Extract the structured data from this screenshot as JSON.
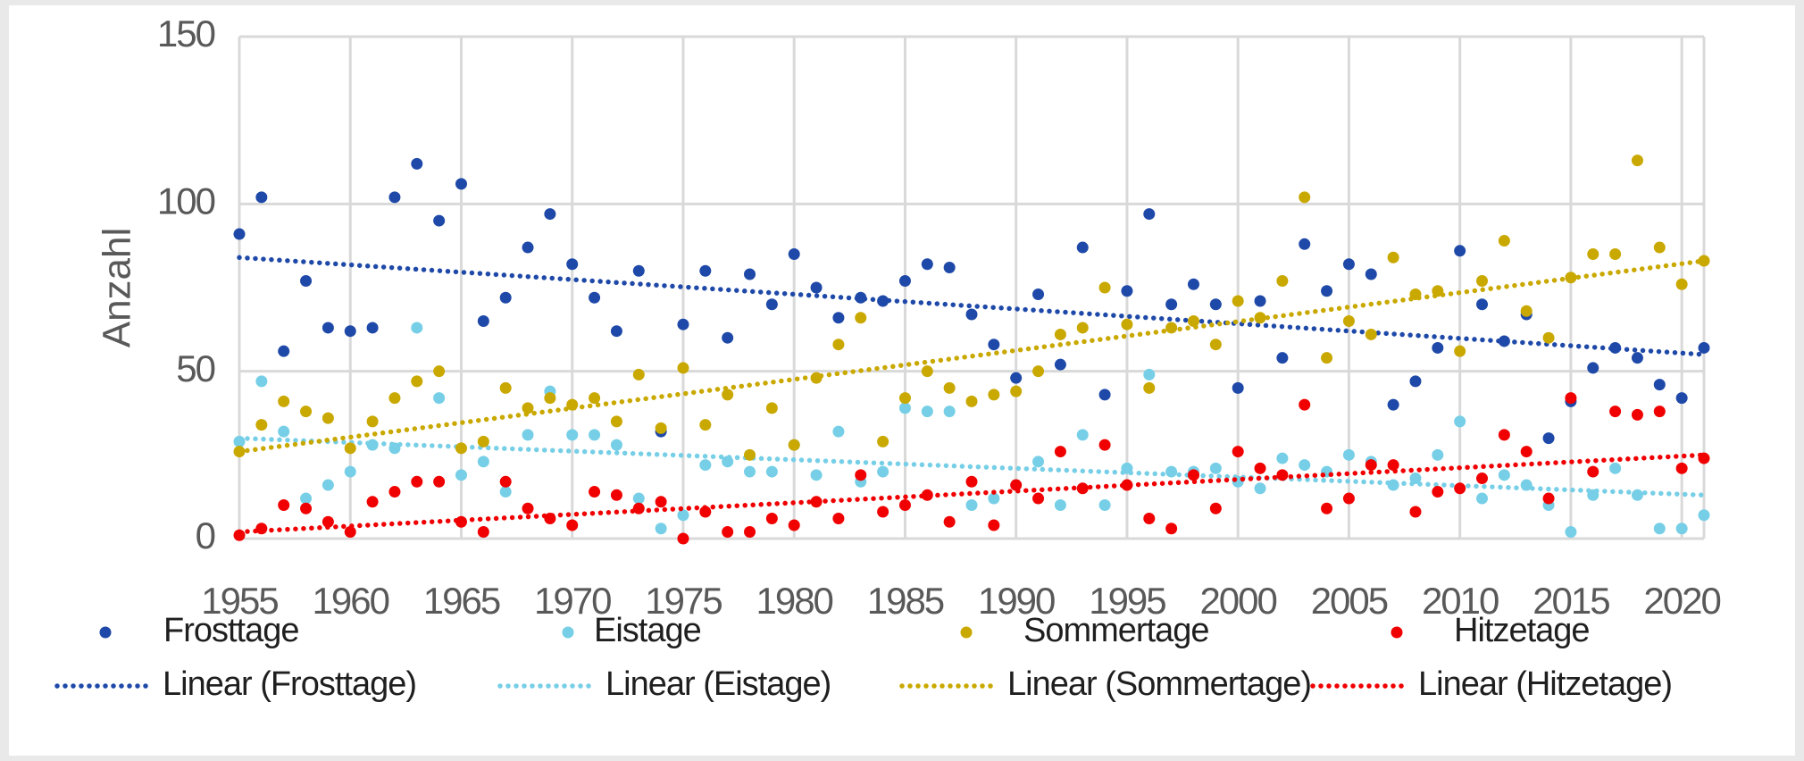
{
  "chart_data": {
    "type": "scatter",
    "y_label": "Anzahl",
    "x": [
      1955,
      1956,
      1957,
      1958,
      1959,
      1960,
      1961,
      1962,
      1963,
      1964,
      1965,
      1966,
      1967,
      1968,
      1969,
      1970,
      1971,
      1972,
      1973,
      1974,
      1975,
      1976,
      1977,
      1978,
      1979,
      1980,
      1981,
      1982,
      1983,
      1984,
      1985,
      1986,
      1987,
      1988,
      1989,
      1990,
      1991,
      1992,
      1993,
      1994,
      1995,
      1996,
      1997,
      1998,
      1999,
      2000,
      2001,
      2002,
      2003,
      2004,
      2005,
      2006,
      2007,
      2008,
      2009,
      2010,
      2011,
      2012,
      2013,
      2014,
      2015,
      2016,
      2017,
      2018,
      2019,
      2020,
      2021
    ],
    "xlim": [
      1955,
      2021
    ],
    "xticks": [
      1955,
      1960,
      1965,
      1970,
      1975,
      1980,
      1985,
      1990,
      1995,
      2000,
      2005,
      2010,
      2015,
      2020
    ],
    "ylim": [
      0,
      150
    ],
    "yticks": [
      0,
      50,
      100,
      150
    ],
    "grid": true,
    "series": [
      {
        "name": "Frosttage",
        "color": "#1f49a8",
        "values": [
          91,
          102,
          56,
          77,
          63,
          62,
          63,
          102,
          112,
          95,
          106,
          65,
          72,
          87,
          97,
          82,
          72,
          62,
          80,
          32,
          64,
          80,
          60,
          79,
          70,
          85,
          75,
          66,
          72,
          71,
          77,
          82,
          81,
          67,
          58,
          48,
          73,
          52,
          87,
          43,
          74,
          97,
          70,
          76,
          70,
          45,
          71,
          54,
          88,
          74,
          82,
          79,
          40,
          47,
          57,
          86,
          70,
          59,
          67,
          30,
          41,
          51,
          57,
          54,
          46,
          42,
          57
        ],
        "trend": {
          "name": "Linear (Frosttage)",
          "x": [
            1955,
            2021
          ],
          "values": [
            84,
            55
          ]
        }
      },
      {
        "name": "Eistage",
        "color": "#76cfe6",
        "values": [
          29,
          47,
          32,
          12,
          16,
          20,
          28,
          27,
          63,
          42,
          19,
          23,
          14,
          31,
          44,
          31,
          31,
          28,
          12,
          3,
          7,
          22,
          23,
          20,
          20,
          28,
          19,
          32,
          17,
          20,
          39,
          38,
          38,
          10,
          12,
          16,
          23,
          10,
          31,
          10,
          21,
          49,
          20,
          20,
          21,
          17,
          15,
          24,
          22,
          20,
          25,
          23,
          16,
          18,
          25,
          35,
          12,
          19,
          16,
          10,
          2,
          13,
          21,
          13,
          3,
          3,
          7
        ],
        "trend": {
          "name": "Linear (Eistage)",
          "x": [
            1955,
            2021
          ],
          "values": [
            30,
            13
          ]
        }
      },
      {
        "name": "Sommertage",
        "color": "#c9a800",
        "values": [
          26,
          34,
          41,
          38,
          36,
          27,
          35,
          42,
          47,
          50,
          27,
          29,
          45,
          39,
          42,
          40,
          42,
          35,
          49,
          33,
          51,
          34,
          43,
          25,
          39,
          28,
          48,
          58,
          66,
          29,
          42,
          50,
          45,
          41,
          43,
          44,
          50,
          61,
          63,
          75,
          64,
          45,
          63,
          65,
          58,
          71,
          66,
          77,
          102,
          54,
          65,
          61,
          84,
          73,
          74,
          56,
          77,
          89,
          68,
          60,
          78,
          85,
          85,
          113,
          87,
          76,
          83
        ],
        "trend": {
          "name": "Linear (Sommertage)",
          "x": [
            1955,
            2021
          ],
          "values": [
            26,
            83
          ]
        }
      },
      {
        "name": "Hitzetage",
        "color": "#f00000",
        "values": [
          1,
          3,
          10,
          9,
          5,
          2,
          11,
          14,
          17,
          17,
          5,
          2,
          17,
          9,
          6,
          4,
          14,
          13,
          9,
          11,
          0,
          8,
          2,
          2,
          6,
          4,
          11,
          6,
          19,
          8,
          10,
          13,
          5,
          17,
          4,
          16,
          12,
          26,
          15,
          28,
          16,
          6,
          3,
          19,
          9,
          26,
          21,
          19,
          40,
          9,
          12,
          22,
          22,
          8,
          14,
          15,
          18,
          31,
          26,
          12,
          42,
          20,
          38,
          37,
          38,
          21,
          24
        ],
        "trend": {
          "name": "Linear (Hitzetage)",
          "x": [
            1955,
            2021
          ],
          "values": [
            2,
            25
          ]
        }
      }
    ]
  }
}
